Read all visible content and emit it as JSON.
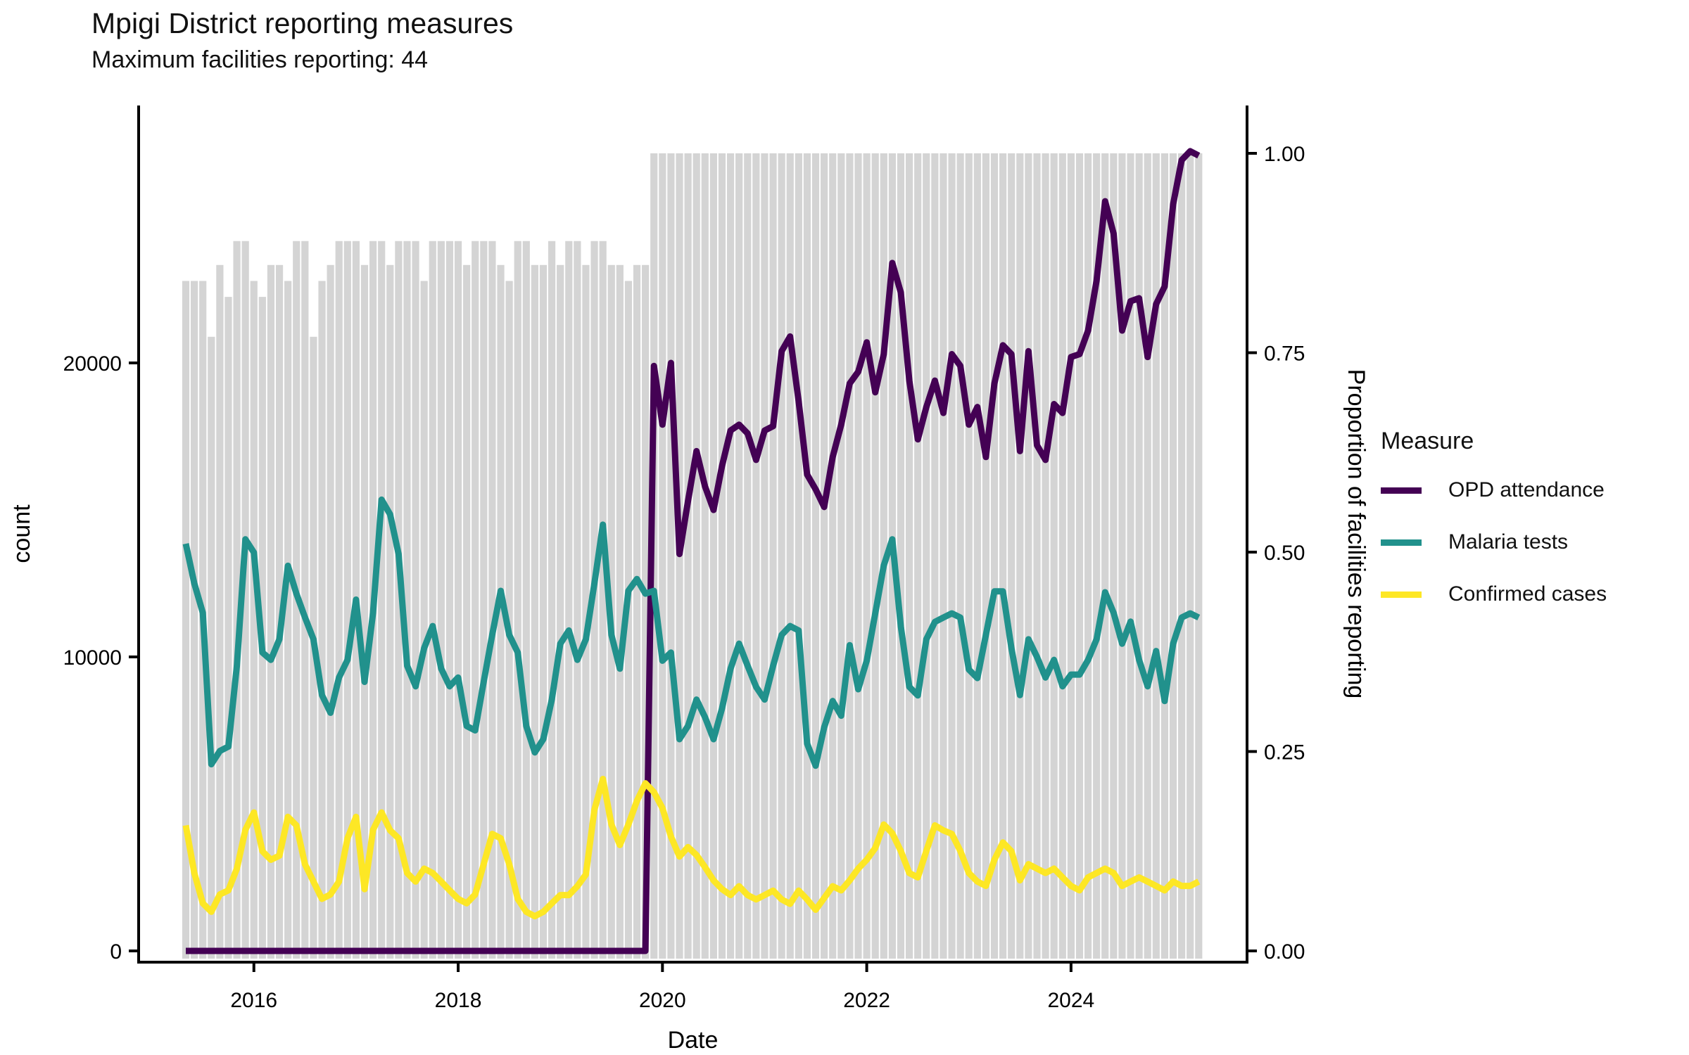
{
  "title": "Mpigi District reporting measures",
  "subtitle": "Maximum facilities reporting: 44",
  "legend": {
    "title": "Measure",
    "entries": [
      {
        "label": "OPD attendance",
        "color": "#440154"
      },
      {
        "label": "Malaria tests",
        "color": "#21918c"
      },
      {
        "label": "Confirmed cases",
        "color": "#fde725"
      }
    ]
  },
  "chart_data": {
    "type": "bar+line",
    "title": "Mpigi District reporting measures",
    "subtitle": "Maximum facilities reporting: 44",
    "months_start": "2015-05",
    "months_end": "2025-04",
    "interval": "monthly",
    "x_axis": {
      "label": "Date",
      "tick_labels": [
        "2016",
        "2018",
        "2020",
        "2022",
        "2024"
      ],
      "tick_years": [
        2016,
        2018,
        2020,
        2022,
        2024
      ]
    },
    "y_left_axis": {
      "label": "count",
      "tick_labels": [
        "0",
        "10000",
        "20000"
      ],
      "tick_values": [
        0,
        10000,
        20000
      ]
    },
    "y_right_axis": {
      "label": "Proportion of facilities reporting",
      "tick_labels": [
        "0.00",
        "0.25",
        "0.50",
        "0.75",
        "1.00"
      ],
      "tick_values": [
        0,
        0.25,
        0.5,
        0.75,
        1.0
      ],
      "count_equivalent_of_1": 27100
    },
    "bars": {
      "name": "Proportion of facilities reporting",
      "color": "#d4d4d4",
      "max_facilities": 44,
      "values": [
        0.84,
        0.84,
        0.84,
        0.77,
        0.86,
        0.82,
        0.89,
        0.89,
        0.84,
        0.82,
        0.86,
        0.86,
        0.84,
        0.89,
        0.89,
        0.77,
        0.84,
        0.86,
        0.89,
        0.89,
        0.89,
        0.86,
        0.89,
        0.89,
        0.86,
        0.89,
        0.89,
        0.89,
        0.84,
        0.89,
        0.89,
        0.89,
        0.89,
        0.86,
        0.89,
        0.89,
        0.89,
        0.86,
        0.84,
        0.89,
        0.89,
        0.86,
        0.86,
        0.89,
        0.86,
        0.89,
        0.89,
        0.86,
        0.89,
        0.89,
        0.86,
        0.86,
        0.84,
        0.86,
        0.86,
        1,
        1,
        1,
        1,
        1,
        1,
        1,
        1,
        1,
        1,
        1,
        1,
        1,
        1,
        1,
        1,
        1,
        1,
        1,
        1,
        1,
        1,
        1,
        1,
        1,
        1,
        1,
        1,
        1,
        1,
        1,
        1,
        1,
        1,
        1,
        1,
        1,
        1,
        1,
        1,
        1,
        1,
        1,
        1,
        1,
        1,
        1,
        1,
        1,
        1,
        1,
        1,
        1,
        1,
        1,
        1,
        1,
        1,
        1,
        1,
        1,
        1,
        1,
        1,
        1
      ]
    },
    "series": [
      {
        "name": "OPD attendance",
        "color": "#440154",
        "axis": "count",
        "values": [
          0,
          0,
          0,
          0,
          0,
          0,
          0,
          0,
          0,
          0,
          0,
          0,
          0,
          0,
          0,
          0,
          0,
          0,
          0,
          0,
          0,
          0,
          0,
          0,
          0,
          0,
          0,
          0,
          0,
          0,
          0,
          0,
          0,
          0,
          0,
          0,
          0,
          0,
          0,
          0,
          0,
          0,
          0,
          0,
          0,
          0,
          0,
          0,
          0,
          0,
          0,
          0,
          0,
          0,
          0,
          19900,
          17900,
          20000,
          13500,
          15300,
          17000,
          15800,
          15000,
          16500,
          17700,
          17900,
          17600,
          16700,
          17700,
          17850,
          20400,
          20900,
          18700,
          16200,
          15700,
          15100,
          16800,
          17900,
          19300,
          19700,
          20700,
          19000,
          20300,
          23400,
          22400,
          19400,
          17400,
          18500,
          19400,
          18300,
          20300,
          19900,
          17900,
          18500,
          16800,
          19300,
          20600,
          20300,
          17000,
          20400,
          17200,
          16700,
          18600,
          18300,
          20200,
          20300,
          21100,
          22800,
          25500,
          24400,
          21100,
          22100,
          22200,
          20200,
          22000,
          22600,
          25400,
          26900,
          27200,
          27050
        ]
      },
      {
        "name": "Malaria tests",
        "color": "#21918c",
        "axis": "count",
        "values": [
          13850,
          12500,
          11500,
          6350,
          6800,
          6950,
          9700,
          14000,
          13550,
          10150,
          9900,
          10600,
          13100,
          12150,
          11350,
          10600,
          8700,
          8100,
          9300,
          9900,
          11950,
          9150,
          11500,
          15350,
          14850,
          13500,
          9700,
          9000,
          10300,
          11050,
          9600,
          9000,
          9300,
          7650,
          7500,
          9150,
          10750,
          12250,
          10750,
          10150,
          7650,
          6750,
          7200,
          8550,
          10450,
          10900,
          9900,
          10600,
          12500,
          14500,
          10750,
          9600,
          12250,
          12650,
          12150,
          12250,
          9870,
          10150,
          7200,
          7650,
          8550,
          7950,
          7200,
          8250,
          9600,
          10450,
          9700,
          8980,
          8550,
          9700,
          10750,
          11050,
          10900,
          7050,
          6300,
          7600,
          8500,
          8000,
          10400,
          8900,
          9870,
          11480,
          13110,
          14000,
          11040,
          8980,
          8690,
          10600,
          11190,
          11340,
          11480,
          11340,
          9570,
          9280,
          10750,
          12230,
          12230,
          10300,
          8700,
          10600,
          10000,
          9300,
          9900,
          9000,
          9400,
          9400,
          9900,
          10600,
          12200,
          11500,
          10450,
          11200,
          9900,
          9000,
          10200,
          8500,
          10450,
          11340,
          11480,
          11340
        ]
      },
      {
        "name": "Confirmed cases",
        "color": "#fde725",
        "axis": "count",
        "values": [
          4270,
          2650,
          1620,
          1330,
          1920,
          2060,
          2800,
          4120,
          4710,
          3390,
          3100,
          3240,
          4560,
          4270,
          2950,
          2360,
          1770,
          1920,
          2360,
          3830,
          4560,
          2100,
          4120,
          4710,
          4100,
          3830,
          2650,
          2360,
          2800,
          2650,
          2360,
          2060,
          1770,
          1620,
          1920,
          2950,
          3980,
          3830,
          2950,
          1770,
          1330,
          1180,
          1330,
          1620,
          1900,
          1900,
          2200,
          2600,
          4800,
          5850,
          4300,
          3600,
          4300,
          5100,
          5700,
          5400,
          4860,
          3890,
          3210,
          3530,
          3260,
          2850,
          2400,
          2100,
          1900,
          2200,
          1900,
          1750,
          1900,
          2050,
          1750,
          1600,
          2050,
          1750,
          1400,
          1800,
          2200,
          2060,
          2400,
          2800,
          3100,
          3500,
          4300,
          4000,
          3400,
          2650,
          2500,
          3400,
          4270,
          4100,
          3980,
          3400,
          2650,
          2360,
          2210,
          3100,
          3690,
          3390,
          2400,
          2950,
          2800,
          2650,
          2800,
          2500,
          2210,
          2060,
          2500,
          2650,
          2800,
          2650,
          2210,
          2360,
          2500,
          2360,
          2210,
          2060,
          2360,
          2210,
          2210,
          2360
        ]
      }
    ]
  }
}
